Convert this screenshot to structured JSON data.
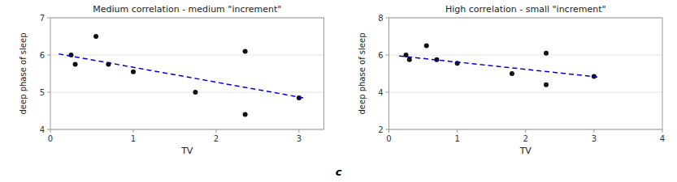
{
  "chart_data": [
    {
      "type": "scatter",
      "title": "Medium correlation - medium \"increment\"",
      "xlabel": "TV",
      "ylabel": "deep phase of sleep",
      "xlim": [
        0,
        3.3
      ],
      "ylim": [
        4,
        7
      ],
      "xticks": [
        0,
        1,
        2,
        3
      ],
      "yticks": [
        4,
        5,
        6,
        7
      ],
      "grid": true,
      "series": [
        {
          "type": "scatter",
          "color": "#111111",
          "x": [
            0.25,
            0.3,
            0.55,
            0.7,
            1.0,
            1.75,
            2.35,
            2.35,
            3.0
          ],
          "values": [
            6.0,
            5.75,
            6.5,
            5.75,
            5.55,
            5.0,
            4.4,
            6.1,
            4.85
          ]
        },
        {
          "type": "line",
          "color": "#0000cc",
          "line_style": "dashed",
          "x": [
            0.1,
            3.05
          ],
          "values": [
            6.03,
            4.85
          ]
        }
      ]
    },
    {
      "type": "scatter",
      "title": "High correlation - small \"increment\"",
      "xlabel": "TV",
      "ylabel": "deep phase of sleep",
      "xlim": [
        0,
        4.0
      ],
      "ylim": [
        2,
        8
      ],
      "xticks": [
        0,
        1,
        2,
        3,
        4
      ],
      "yticks": [
        2,
        4,
        6,
        8
      ],
      "grid": true,
      "series": [
        {
          "type": "scatter",
          "color": "#111111",
          "x": [
            0.25,
            0.3,
            0.55,
            0.7,
            1.0,
            1.8,
            2.3,
            2.3,
            3.0
          ],
          "values": [
            6.0,
            5.75,
            6.5,
            5.75,
            5.55,
            5.0,
            4.4,
            6.1,
            4.85
          ]
        },
        {
          "type": "line",
          "color": "#0000cc",
          "line_style": "dashed",
          "x": [
            0.15,
            3.05
          ],
          "values": [
            5.95,
            4.82
          ]
        }
      ]
    }
  ],
  "caption": "c"
}
